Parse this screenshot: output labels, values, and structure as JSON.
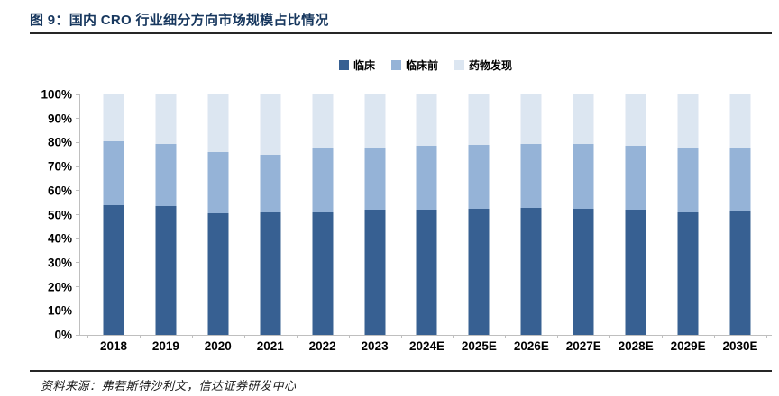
{
  "figure": {
    "title": "图 9：国内 CRO 行业细分方向市场规模占比情况",
    "source": "资料来源：弗若斯特沙利文，信达证券研发中心"
  },
  "chart_data": {
    "type": "bar",
    "subtype": "stacked-100-percent",
    "title": "国内 CRO 行业细分方向市场规模占比情况",
    "categories": [
      "2018",
      "2019",
      "2020",
      "2021",
      "2022",
      "2023",
      "2024E",
      "2025E",
      "2026E",
      "2027E",
      "2028E",
      "2029E",
      "2030E"
    ],
    "series": [
      {
        "name": "临床",
        "color": "#376092",
        "values": [
          54,
          53.5,
          50.5,
          51,
          51,
          52,
          52,
          52.5,
          53,
          52.5,
          52,
          51,
          51.5
        ]
      },
      {
        "name": "临床前",
        "color": "#95b3d7",
        "values": [
          26.5,
          26,
          25.5,
          24,
          26.5,
          26,
          26.5,
          26.5,
          26.5,
          27,
          26.5,
          27,
          26.5
        ]
      },
      {
        "name": "药物发现",
        "color": "#dce6f1",
        "values": [
          19.5,
          20.5,
          24,
          25,
          22.5,
          22,
          21.5,
          21,
          20.5,
          20.5,
          21.5,
          22,
          22
        ]
      }
    ],
    "xlabel": "",
    "ylabel": "",
    "ylim": [
      0,
      100
    ],
    "unit": "%",
    "y_tick_labels_top_to_bottom": [
      "100%",
      "90%",
      "80%",
      "70%",
      "60%",
      "50%",
      "40%",
      "30%",
      "20%",
      "10%",
      "0%"
    ],
    "legend_position": "top-center",
    "grid": false,
    "axis_color": "#bfbfbf"
  }
}
